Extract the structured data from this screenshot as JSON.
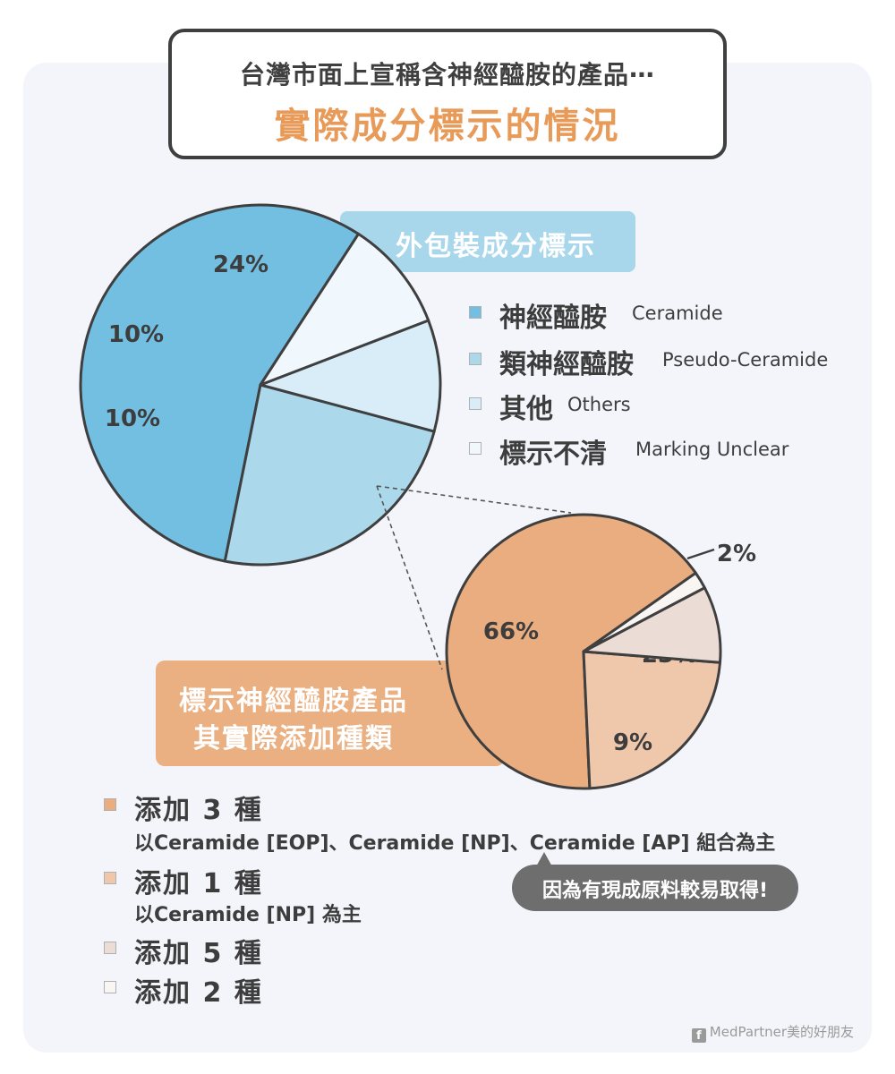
{
  "title": {
    "line1": "台灣市面上宣稱含神經醯胺的產品⋯",
    "line2": "實際成分標示的情況"
  },
  "chart_labels": {
    "outer": "外包裝成分標示",
    "inner_line1": "標示神經醯胺產品",
    "inner_line2": "其實際添加種類"
  },
  "chart_data": [
    {
      "type": "pie",
      "title": "外包裝成分標示",
      "slices": [
        {
          "label_zh": "神經醯胺",
          "label_en": "Ceramide",
          "value": 56,
          "display": "56%",
          "color": "#72bfe2"
        },
        {
          "label_zh": "類神經醯胺",
          "label_en": "Pseudo-Ceramide",
          "value": 24,
          "display": "24%",
          "color": "#acd8eb"
        },
        {
          "label_zh": "其他",
          "label_en": "Others",
          "value": 10,
          "display": "10%",
          "color": "#d8edf7"
        },
        {
          "label_zh": "標示不清",
          "label_en": "Marking Unclear",
          "value": 10,
          "display": "10%",
          "color": "#f0f8fd"
        }
      ]
    },
    {
      "type": "pie",
      "title": "標示神經醯胺產品 其實際添加種類",
      "slices": [
        {
          "label": "添加 3 種",
          "note": "以Ceramide [EOP]、Ceramide [NP]、Ceramide [AP] 組合為主",
          "value": 66,
          "display": "66%",
          "color": "#eaad80"
        },
        {
          "label": "添加 1 種",
          "note": "以Ceramide [NP] 為主",
          "value": 23,
          "display": "23%",
          "color": "#efc8ab"
        },
        {
          "label": "添加 5 種",
          "value": 9,
          "display": "9%",
          "color": "#ebdcd6"
        },
        {
          "label": "添加 2 種",
          "value": 2,
          "display": "2%",
          "color": "#f8f5f2"
        }
      ]
    }
  ],
  "legend_top": [
    {
      "zh": "神經醯胺",
      "en": "Ceramide",
      "color": "#72bfe2"
    },
    {
      "zh": "類神經醯胺",
      "en": "Pseudo-Ceramide",
      "color": "#acd8eb"
    },
    {
      "zh": "其他",
      "en": "Others",
      "color": "#d8edf7"
    },
    {
      "zh": "標示不清",
      "en": "Marking Unclear",
      "color": "#f0f8fd"
    }
  ],
  "legend_bottom": [
    {
      "label": "添加 3 種",
      "note": "以Ceramide [EOP]、Ceramide [NP]、Ceramide [AP] 組合為主",
      "color": "#eaad80"
    },
    {
      "label": "添加 1 種",
      "note": "以Ceramide [NP] 為主",
      "color": "#efc8ab"
    },
    {
      "label": "添加 5 種",
      "color": "#ebdcd6"
    },
    {
      "label": "添加 2 種",
      "color": "#f8f5f2"
    }
  ],
  "callout": "因為有現成原料較易取得!",
  "credit": "MedPartner美的好朋友",
  "credit_icon": "f"
}
